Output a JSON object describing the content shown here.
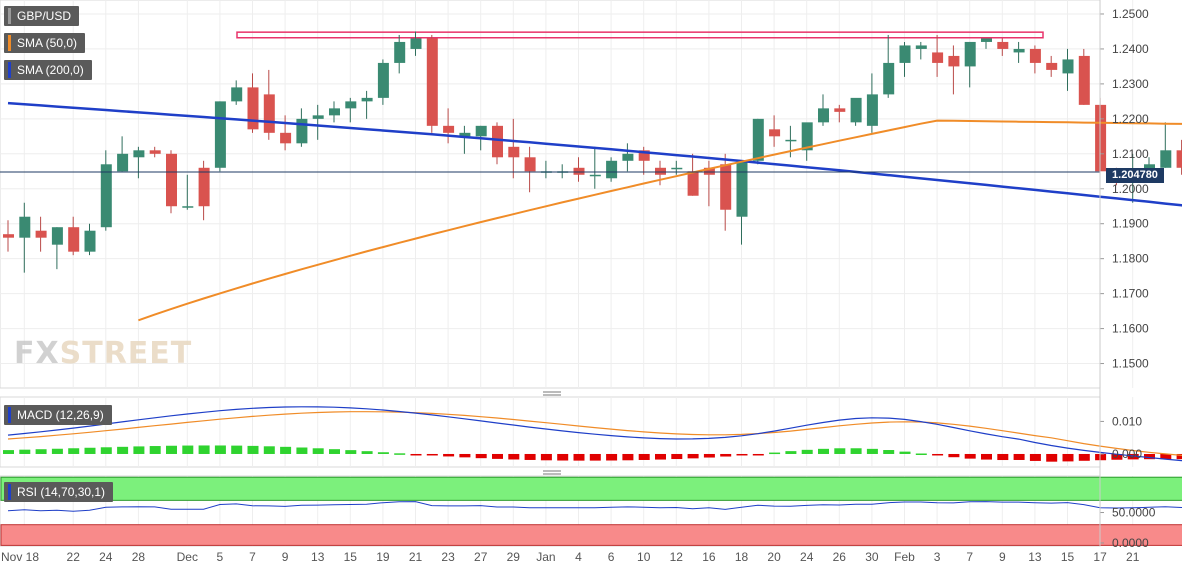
{
  "chart_data": [
    {
      "type": "candlestick",
      "instrument": "GBP/USD",
      "ylim": [
        1.143,
        1.254
      ],
      "yticks": [
        "1.1500",
        "1.1600",
        "1.1700",
        "1.1800",
        "1.1900",
        "1.2000",
        "1.2100",
        "1.2200",
        "1.2300",
        "1.2400",
        "1.2500"
      ],
      "current_price": "1.204780",
      "current_price_value": 1.20478,
      "xticks": [
        "Nov 18",
        "22",
        "24",
        "28",
        "Dec",
        "5",
        "7",
        "9",
        "13",
        "15",
        "19",
        "21",
        "23",
        "27",
        "29",
        "Jan",
        "4",
        "6",
        "10",
        "12",
        "16",
        "18",
        "20",
        "24",
        "26",
        "30",
        "Feb",
        "3",
        "7",
        "9",
        "13",
        "15",
        "17",
        "21"
      ],
      "resistance_zone": [
        1.2432,
        1.2448
      ],
      "indicators": [
        {
          "name": "SMA (50,0)",
          "color": "#f08c28"
        },
        {
          "name": "SMA (200,0)",
          "color": "#1f3fc8"
        }
      ],
      "candles": [
        [
          1.187,
          1.191,
          1.182,
          1.186
        ],
        [
          1.186,
          1.196,
          1.176,
          1.192
        ],
        [
          1.188,
          1.192,
          1.182,
          1.186
        ],
        [
          1.184,
          1.189,
          1.177,
          1.189
        ],
        [
          1.189,
          1.192,
          1.181,
          1.182
        ],
        [
          1.182,
          1.19,
          1.181,
          1.188
        ],
        [
          1.189,
          1.211,
          1.188,
          1.207
        ],
        [
          1.205,
          1.215,
          1.205,
          1.21
        ],
        [
          1.209,
          1.212,
          1.203,
          1.211
        ],
        [
          1.211,
          1.212,
          1.209,
          1.21
        ],
        [
          1.21,
          1.211,
          1.193,
          1.195
        ],
        [
          1.195,
          1.204,
          1.194,
          1.195
        ],
        [
          1.206,
          1.208,
          1.191,
          1.195
        ],
        [
          1.206,
          1.225,
          1.205,
          1.225
        ],
        [
          1.225,
          1.231,
          1.224,
          1.229
        ],
        [
          1.229,
          1.233,
          1.216,
          1.217
        ],
        [
          1.227,
          1.234,
          1.214,
          1.216
        ],
        [
          1.216,
          1.221,
          1.211,
          1.213
        ],
        [
          1.213,
          1.223,
          1.212,
          1.22
        ],
        [
          1.22,
          1.224,
          1.214,
          1.221
        ],
        [
          1.221,
          1.225,
          1.219,
          1.223
        ],
        [
          1.223,
          1.226,
          1.219,
          1.225
        ],
        [
          1.225,
          1.228,
          1.22,
          1.226
        ],
        [
          1.226,
          1.237,
          1.224,
          1.236
        ],
        [
          1.236,
          1.244,
          1.233,
          1.242
        ],
        [
          1.24,
          1.245,
          1.238,
          1.243
        ],
        [
          1.243,
          1.244,
          1.216,
          1.218
        ],
        [
          1.218,
          1.223,
          1.213,
          1.216
        ],
        [
          1.215,
          1.218,
          1.21,
          1.216
        ],
        [
          1.215,
          1.218,
          1.211,
          1.218
        ],
        [
          1.218,
          1.219,
          1.207,
          1.209
        ],
        [
          1.212,
          1.22,
          1.203,
          1.209
        ],
        [
          1.209,
          1.212,
          1.199,
          1.205
        ],
        [
          1.205,
          1.208,
          1.203,
          1.205
        ],
        [
          1.205,
          1.207,
          1.203,
          1.205
        ],
        [
          1.206,
          1.209,
          1.202,
          1.204
        ],
        [
          1.204,
          1.212,
          1.2,
          1.204
        ],
        [
          1.203,
          1.209,
          1.202,
          1.208
        ],
        [
          1.208,
          1.213,
          1.205,
          1.21
        ],
        [
          1.211,
          1.212,
          1.204,
          1.208
        ],
        [
          1.206,
          1.208,
          1.201,
          1.204
        ],
        [
          1.206,
          1.208,
          1.204,
          1.206
        ],
        [
          1.205,
          1.21,
          1.198,
          1.198
        ],
        [
          1.206,
          1.208,
          1.195,
          1.204
        ],
        [
          1.207,
          1.21,
          1.188,
          1.194
        ],
        [
          1.192,
          1.208,
          1.184,
          1.208
        ],
        [
          1.208,
          1.22,
          1.207,
          1.22
        ],
        [
          1.217,
          1.221,
          1.212,
          1.215
        ],
        [
          1.214,
          1.218,
          1.209,
          1.214
        ],
        [
          1.211,
          1.218,
          1.208,
          1.219
        ],
        [
          1.219,
          1.227,
          1.218,
          1.223
        ],
        [
          1.223,
          1.224,
          1.219,
          1.222
        ],
        [
          1.219,
          1.225,
          1.218,
          1.226
        ],
        [
          1.218,
          1.233,
          1.216,
          1.227
        ],
        [
          1.227,
          1.244,
          1.226,
          1.236
        ],
        [
          1.236,
          1.242,
          1.232,
          1.241
        ],
        [
          1.24,
          1.242,
          1.237,
          1.241
        ],
        [
          1.239,
          1.244,
          1.232,
          1.236
        ],
        [
          1.238,
          1.241,
          1.227,
          1.235
        ],
        [
          1.235,
          1.242,
          1.229,
          1.242
        ],
        [
          1.242,
          1.243,
          1.24,
          1.243
        ],
        [
          1.242,
          1.243,
          1.238,
          1.24
        ],
        [
          1.239,
          1.242,
          1.236,
          1.24
        ],
        [
          1.24,
          1.241,
          1.233,
          1.236
        ],
        [
          1.236,
          1.238,
          1.232,
          1.234
        ],
        [
          1.233,
          1.24,
          1.228,
          1.237
        ],
        [
          1.238,
          1.24,
          1.224,
          1.224
        ],
        [
          1.224,
          1.226,
          1.205,
          1.205
        ],
        [
          1.205,
          1.206,
          1.201,
          1.203
        ],
        [
          1.202,
          1.21,
          1.196,
          1.204
        ],
        [
          1.204,
          1.209,
          1.204,
          1.207
        ],
        [
          1.206,
          1.219,
          1.206,
          1.211
        ],
        [
          1.211,
          1.214,
          1.204,
          1.206
        ],
        [
          1.206,
          1.207,
          1.204,
          1.205
        ]
      ]
    },
    {
      "type": "line",
      "title": "MACD (12,26,9)",
      "yticks": [
        "0.000",
        "0.010"
      ],
      "ylim": [
        -0.004,
        0.0175
      ]
    },
    {
      "type": "line",
      "title": "RSI (14,70,30,1)",
      "yticks": [
        "0.0000",
        "50.0000"
      ],
      "ylim": [
        -5,
        110
      ],
      "overbought": 70,
      "oversold": 30
    }
  ]
}
